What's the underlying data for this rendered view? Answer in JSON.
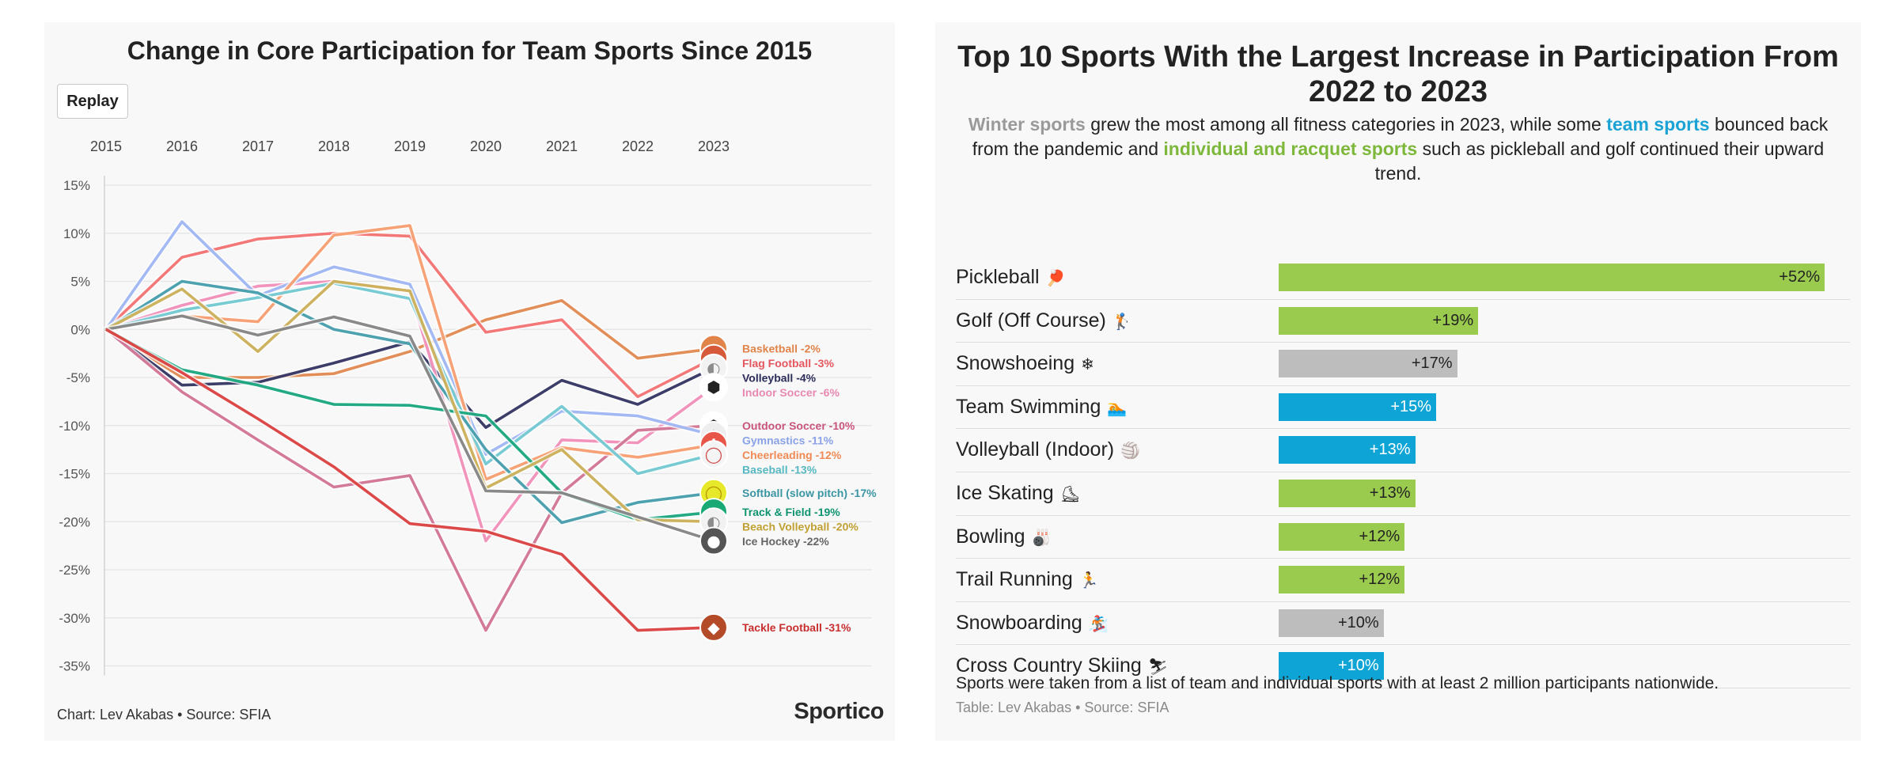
{
  "left": {
    "title": "Change in Core Participation for Team Sports Since 2015",
    "replay_label": "Replay",
    "footer": "Chart: Lev Akabas • Source: SFIA",
    "brand": "Sportico"
  },
  "chart_data": [
    {
      "type": "line",
      "title": "Change in Core Participation for Team Sports Since 2015",
      "x": [
        2015,
        2016,
        2017,
        2018,
        2019,
        2020,
        2021,
        2022,
        2023
      ],
      "x_axis_position": "top",
      "ylim": [
        -35,
        15
      ],
      "yticks": [
        15,
        10,
        5,
        0,
        -5,
        -10,
        -15,
        -20,
        -25,
        -30,
        -35
      ],
      "y_unit": "%",
      "grid": true,
      "series": [
        {
          "name": "Basketball",
          "label": "Basketball -2%",
          "color": "#e0844a",
          "label_color": "#e0844a",
          "icon": "basketball",
          "glyph": "●",
          "icon_fill": "#e0844a",
          "icon_ink": "#ffffff",
          "values": [
            0,
            -5,
            -5,
            -4.6,
            -2.3,
            1,
            3,
            -3,
            -2
          ]
        },
        {
          "name": "Flag Football",
          "label": "Flag Football -3%",
          "color": "#f26d6d",
          "label_color": "#e5565e",
          "icon": "football",
          "glyph": "◆",
          "icon_fill": "#d6593a",
          "icon_ink": "#ffffff",
          "values": [
            0,
            7.5,
            9.4,
            10,
            9.7,
            -0.3,
            1,
            -7,
            -3
          ]
        },
        {
          "name": "Volleyball",
          "label": "Volleyball -4%",
          "color": "#2d2d5c",
          "label_color": "#2d2d5c",
          "icon": "volleyball",
          "glyph": "◐",
          "icon_fill": "#f2f2f2",
          "icon_ink": "#8c8c8c",
          "values": [
            0,
            -5.8,
            -5.5,
            -3.5,
            -1.3,
            -10.2,
            -5.3,
            -7.8,
            -4
          ]
        },
        {
          "name": "Indoor Soccer",
          "label": "Indoor Soccer -6%",
          "color": "#f08ab5",
          "label_color": "#e889b2",
          "icon": "soccer-ball",
          "glyph": "⬢",
          "icon_fill": "#ffffff",
          "icon_ink": "#222222",
          "values": [
            0,
            2.5,
            4.5,
            5,
            4,
            -22,
            -11.5,
            -11.8,
            -6
          ]
        },
        {
          "name": "Outdoor Soccer",
          "label": "Outdoor Soccer -10%",
          "color": "#cf6f90",
          "label_color": "#c9557e",
          "icon": "soccer-ball",
          "glyph": "⬢",
          "icon_fill": "#ffffff",
          "icon_ink": "#222222",
          "values": [
            0,
            -6.5,
            -11.5,
            -16.4,
            -15.2,
            -31.3,
            -17,
            -10.5,
            -10
          ]
        },
        {
          "name": "Gymnastics",
          "label": "Gymnastics -11%",
          "color": "#9bb3f2",
          "label_color": "#8aa2e8",
          "icon": "gymnastics",
          "glyph": "✦",
          "icon_fill": "#eeeeee",
          "icon_ink": "#666666",
          "values": [
            0,
            11.2,
            3.5,
            6.5,
            4.7,
            -13,
            -8.5,
            -9,
            -11
          ]
        },
        {
          "name": "Cheerleading",
          "label": "Cheerleading -12%",
          "color": "#f59a6a",
          "label_color": "#f08a55",
          "icon": "cheerleading",
          "glyph": "✱",
          "icon_fill": "#e8564a",
          "icon_ink": "#ffffff",
          "values": [
            0,
            1.4,
            0.8,
            9.8,
            10.8,
            -15.6,
            -12.3,
            -13.3,
            -12
          ]
        },
        {
          "name": "Baseball",
          "label": "Baseball -13%",
          "color": "#6cc6cf",
          "label_color": "#56b8c2",
          "icon": "baseball",
          "glyph": "◯",
          "icon_fill": "#f4f4f4",
          "icon_ink": "#d14b4b",
          "values": [
            0,
            2,
            3.3,
            4.8,
            3.2,
            -14,
            -8,
            -15,
            -13
          ]
        },
        {
          "name": "Softball (slow pitch)",
          "label": "Softball (slow pitch) -17%",
          "color": "#3f9aa8",
          "label_color": "#3a95a3",
          "icon": "softball",
          "glyph": "◯",
          "icon_fill": "#e8e82a",
          "icon_ink": "#b59400",
          "values": [
            0,
            5,
            3.8,
            0,
            -1.5,
            -12.5,
            -20.1,
            -18,
            -17
          ]
        },
        {
          "name": "Track & Field",
          "label": "Track & Field -19%",
          "color": "#10a37a",
          "label_color": "#0f9470",
          "icon": "track-and-field",
          "glyph": "➤",
          "icon_fill": "#19a974",
          "icon_ink": "#ffffff",
          "values": [
            0,
            -4.2,
            -5.8,
            -7.8,
            -7.9,
            -9,
            -17,
            -19.8,
            -19
          ]
        },
        {
          "name": "Beach Volleyball",
          "label": "Beach Volleyball -20%",
          "color": "#c9ac52",
          "label_color": "#c0a033",
          "icon": "volleyball",
          "glyph": "◐",
          "icon_fill": "#f2f2f2",
          "icon_ink": "#8c8c8c",
          "values": [
            0,
            4.2,
            -2.3,
            5,
            4,
            -16.5,
            -12.5,
            -19.8,
            -20
          ]
        },
        {
          "name": "Ice Hockey",
          "label": "Ice Hockey -22%",
          "color": "#7f7f7f",
          "label_color": "#666666",
          "icon": "ice-hockey",
          "glyph": "●",
          "icon_fill": "#555555",
          "icon_ink": "#ffffff",
          "values": [
            0,
            1.4,
            -0.6,
            1.3,
            -0.7,
            -16.8,
            -17,
            -19.5,
            -22
          ]
        },
        {
          "name": "Tackle Football",
          "label": "Tackle Football -31%",
          "color": "#d83a3a",
          "label_color": "#c82e2e",
          "icon": "football",
          "glyph": "◆",
          "icon_fill": "#b34a28",
          "icon_ink": "#ffffff",
          "values": [
            0,
            -4.5,
            -9.3,
            -14.3,
            -20.2,
            -21,
            -23.4,
            -31.3,
            -31
          ]
        }
      ]
    },
    {
      "type": "bar",
      "orientation": "horizontal",
      "title": "Top 10 Sports With the Largest Increase in Participation From 2022 to 2023",
      "xlim": [
        0,
        52
      ],
      "y_unit": "%",
      "categories": [
        "Pickleball",
        "Golf (Off Course)",
        "Snowshoeing",
        "Team Swimming",
        "Volleyball (Indoor)",
        "Ice Skating",
        "Bowling",
        "Trail Running",
        "Snowboarding",
        "Cross Country Skiing"
      ],
      "values": [
        52,
        19,
        17,
        15,
        13,
        13,
        12,
        12,
        10,
        10
      ],
      "value_labels": [
        "+52%",
        "+19%",
        "+17%",
        "+15%",
        "+13%",
        "+13%",
        "+12%",
        "+12%",
        "+10%",
        "+10%"
      ],
      "groups": [
        "individual",
        "individual",
        "winter",
        "team",
        "team",
        "individual",
        "individual",
        "individual",
        "winter",
        "team"
      ],
      "icons": [
        "pickleball-paddle-icon",
        "golfer-icon",
        "snowflake-icon",
        "swimmer-icon",
        "volleyball-icon",
        "ice-skate-icon",
        "bowling-icon",
        "runner-icon",
        "snowboarder-icon",
        "skier-icon"
      ],
      "emojis": [
        "🏓",
        "🏌",
        "❄",
        "🏊",
        "🏐",
        "⛸",
        "🎳",
        "🏃",
        "🏂",
        "⛷"
      ]
    }
  ],
  "right": {
    "title": "Top 10 Sports With the Largest Increase in Participation From 2022 to 2023",
    "subtitle": {
      "winter": "Winter sports",
      "part1": " grew the most among all fitness categories in 2023, while some ",
      "team": "team sports",
      "part2": " bounced back from the pandemic and ",
      "individual": "individual and racquet sports",
      "part3": " such as pickleball and golf continued their upward trend."
    },
    "note": "Sports were taken from a list of team and individual sports with at least 2 million participants nationwide.",
    "credit": "Table: Lev Akabas • Source: SFIA"
  },
  "colors": {
    "winter": "#bdbdbd",
    "team": "#0ea5d6",
    "individual": "#9bcb4e",
    "panel_bg": "#f8f8f8",
    "grid": "#e4e4e4"
  }
}
